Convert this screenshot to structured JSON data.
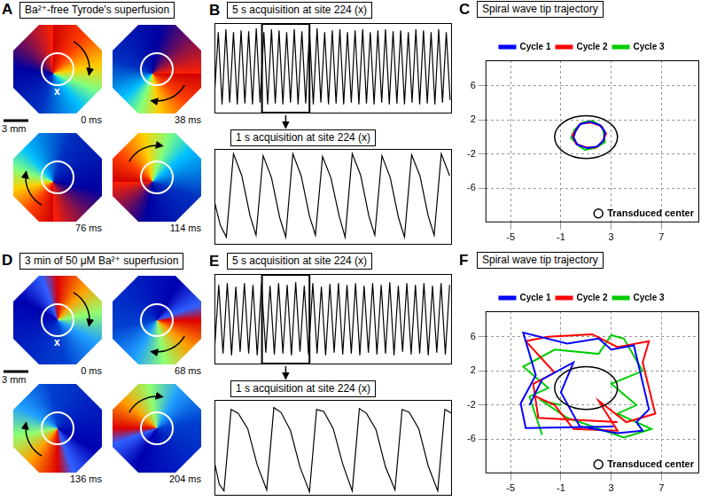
{
  "maps": [
    {
      "panel": "A",
      "title": "Ba²⁺-free Tyrode's superfusion",
      "scale_bar": "3 mm",
      "site_label": "x",
      "frames": [
        "0 ms",
        "38 ms",
        "76 ms",
        "114 ms"
      ]
    },
    {
      "panel": "D",
      "title": "3 min of 50 μM Ba²⁺ superfusion",
      "scale_bar": "3 mm",
      "site_label": "x",
      "frames": [
        "0 ms",
        "68 ms",
        "136 ms",
        "204 ms"
      ]
    }
  ],
  "chart_data": [
    {
      "panel": "B",
      "type": "line",
      "title": "5 s acquisition at site 224 (x)",
      "color": "#000000",
      "tick_labels": false,
      "grid": false,
      "xlim": [
        0,
        5
      ],
      "ylim": [
        0,
        1
      ],
      "window": [
        1.0,
        2.0
      ],
      "x": [
        0,
        0.08,
        0.16,
        0.24,
        0.32,
        0.4,
        0.48,
        0.56,
        0.64,
        0.72,
        0.8,
        0.88,
        0.96,
        1.04,
        1.12,
        1.2,
        1.28,
        1.36,
        1.44,
        1.52,
        1.6,
        1.68,
        1.76,
        1.84,
        1.92,
        2,
        2.08,
        2.16,
        2.24,
        2.32,
        2.4,
        2.48,
        2.56,
        2.64,
        2.72,
        2.8,
        2.88,
        2.96,
        3.04,
        3.12,
        3.2,
        3.28,
        3.36,
        3.44,
        3.52,
        3.6,
        3.68,
        3.76,
        3.84,
        3.92,
        4,
        4.08,
        4.16,
        4.24,
        4.32,
        4.4,
        4.48,
        4.56,
        4.64,
        4.72,
        4.8,
        4.88,
        4.96
      ],
      "values": [
        0.2,
        0.9,
        0.1,
        0.93,
        0.12,
        0.9,
        0.1,
        0.92,
        0.11,
        0.91,
        0.1,
        0.94,
        0.12,
        0.9,
        0.1,
        0.93,
        0.11,
        0.92,
        0.1,
        0.9,
        0.12,
        0.93,
        0.1,
        0.91,
        0.11,
        0.92,
        0.1,
        0.94,
        0.12,
        0.9,
        0.1,
        0.92,
        0.11,
        0.93,
        0.1,
        0.9,
        0.12,
        0.92,
        0.1,
        0.93,
        0.11,
        0.9,
        0.1,
        0.92,
        0.12,
        0.93,
        0.1,
        0.91,
        0.11,
        0.92,
        0.1,
        0.9,
        0.12,
        0.93,
        0.1,
        0.92,
        0.11,
        0.9,
        0.1,
        0.93,
        0.12,
        0.9,
        0.15
      ]
    },
    {
      "type": "line",
      "title": "1 s acquisition at site 224 (x)",
      "color": "#000000",
      "tick_labels": false,
      "grid": false,
      "xlim": [
        0,
        1
      ],
      "ylim": [
        0,
        1
      ],
      "x": [
        0,
        0.025,
        0.05,
        0.08,
        0.115,
        0.15,
        0.175,
        0.205,
        0.24,
        0.275,
        0.3,
        0.33,
        0.365,
        0.4,
        0.425,
        0.455,
        0.49,
        0.525,
        0.55,
        0.58,
        0.615,
        0.65,
        0.675,
        0.705,
        0.74,
        0.775,
        0.8,
        0.83,
        0.865,
        0.9,
        0.925,
        0.955,
        0.99
      ],
      "values": [
        0.45,
        0.2,
        0.08,
        0.95,
        0.72,
        0.3,
        0.1,
        0.93,
        0.7,
        0.28,
        0.08,
        0.95,
        0.72,
        0.3,
        0.1,
        0.92,
        0.7,
        0.3,
        0.08,
        0.95,
        0.73,
        0.3,
        0.1,
        0.93,
        0.7,
        0.28,
        0.08,
        0.94,
        0.72,
        0.3,
        0.1,
        0.95,
        0.72
      ]
    },
    {
      "panel": "C",
      "type": "line",
      "title": "Spiral wave tip trajectory",
      "grid": true,
      "legend": "top",
      "xlim": [
        -7,
        10
      ],
      "ylim": [
        -10,
        9
      ],
      "xticks": [
        -5,
        -1,
        3,
        7
      ],
      "yticks": [
        -6,
        -2,
        2,
        6
      ],
      "circle": {
        "name": "Transduced center",
        "x": 1,
        "y": 0,
        "radius": 2.5
      },
      "series": [
        {
          "name": "Cycle 1",
          "color": "#0000ff",
          "x": [
            0.2,
            0.5,
            1.3,
            2.1,
            2.5,
            2.4,
            1.9,
            1.1,
            0.3,
            0.0,
            0.2
          ],
          "values": [
            0.8,
            1.5,
            1.8,
            1.4,
            0.6,
            -0.4,
            -1.1,
            -1.3,
            -0.9,
            0.0,
            0.8
          ]
        },
        {
          "name": "Cycle 2",
          "color": "#ff0000",
          "x": [
            0.3,
            0.6,
            1.4,
            2.2,
            2.6,
            2.3,
            1.8,
            1.0,
            0.2,
            -0.1,
            0.3
          ],
          "values": [
            1.0,
            1.6,
            1.7,
            1.3,
            0.4,
            -0.5,
            -1.2,
            -1.2,
            -0.8,
            0.2,
            1.0
          ]
        },
        {
          "name": "Cycle 3",
          "color": "#00cc00",
          "x": [
            0.1,
            0.7,
            1.5,
            2.3,
            2.4,
            2.5,
            1.7,
            0.9,
            0.4,
            -0.2,
            0.1
          ],
          "values": [
            0.9,
            1.7,
            1.9,
            1.2,
            0.5,
            -0.6,
            -1.3,
            -1.5,
            -1.0,
            -0.1,
            0.9
          ]
        }
      ]
    },
    {
      "panel": "E",
      "type": "line",
      "title": "5 s acquisition at site 224 (x)",
      "color": "#000000",
      "tick_labels": false,
      "grid": false,
      "xlim": [
        0,
        5
      ],
      "ylim": [
        0,
        1
      ],
      "window": [
        1.0,
        2.0
      ],
      "x": [
        0,
        0.09,
        0.18,
        0.27,
        0.36,
        0.45,
        0.54,
        0.63,
        0.72,
        0.81,
        0.9,
        0.99,
        1.08,
        1.17,
        1.26,
        1.35,
        1.44,
        1.53,
        1.62,
        1.71,
        1.8,
        1.89,
        1.98,
        2.07,
        2.16,
        2.25,
        2.34,
        2.43,
        2.52,
        2.61,
        2.7,
        2.79,
        2.88,
        2.97,
        3.06,
        3.15,
        3.24,
        3.33,
        3.42,
        3.51,
        3.6,
        3.69,
        3.78,
        3.87,
        3.96,
        4.05,
        4.14,
        4.23,
        4.32,
        4.41,
        4.5,
        4.59,
        4.68,
        4.77,
        4.86,
        4.95
      ],
      "values": [
        0.15,
        0.88,
        0.12,
        0.9,
        0.1,
        0.86,
        0.14,
        0.9,
        0.12,
        0.88,
        0.1,
        0.9,
        0.13,
        0.87,
        0.11,
        0.9,
        0.12,
        0.88,
        0.1,
        0.91,
        0.14,
        0.87,
        0.11,
        0.9,
        0.12,
        0.86,
        0.1,
        0.89,
        0.13,
        0.9,
        0.11,
        0.88,
        0.12,
        0.9,
        0.1,
        0.87,
        0.13,
        0.9,
        0.11,
        0.88,
        0.12,
        0.91,
        0.1,
        0.87,
        0.14,
        0.9,
        0.11,
        0.88,
        0.12,
        0.9,
        0.1,
        0.87,
        0.13,
        0.9,
        0.11,
        0.88
      ]
    },
    {
      "type": "line",
      "title": "1 s acquisition at site 224 (x)",
      "color": "#000000",
      "tick_labels": false,
      "grid": false,
      "xlim": [
        0,
        1
      ],
      "ylim": [
        0,
        1
      ],
      "x": [
        0,
        0.02,
        0.04,
        0.07,
        0.1,
        0.14,
        0.18,
        0.22,
        0.25,
        0.28,
        0.32,
        0.36,
        0.4,
        0.43,
        0.46,
        0.5,
        0.54,
        0.58,
        0.61,
        0.64,
        0.68,
        0.72,
        0.76,
        0.79,
        0.82,
        0.86,
        0.9,
        0.94,
        0.97,
        1.0
      ],
      "values": [
        0.35,
        0.12,
        0.05,
        0.9,
        0.86,
        0.7,
        0.32,
        0.06,
        0.92,
        0.87,
        0.68,
        0.3,
        0.04,
        0.9,
        0.88,
        0.7,
        0.33,
        0.05,
        0.91,
        0.86,
        0.69,
        0.3,
        0.06,
        0.9,
        0.87,
        0.7,
        0.31,
        0.05,
        0.9,
        0.86
      ]
    },
    {
      "panel": "F",
      "type": "line",
      "title": "Spiral wave tip trajectory",
      "grid": true,
      "legend": "top",
      "xlim": [
        -7,
        10
      ],
      "ylim": [
        -10,
        9
      ],
      "xticks": [
        -5,
        -1,
        3,
        7
      ],
      "yticks": [
        -6,
        -2,
        2,
        6
      ],
      "circle": {
        "name": "Transduced center",
        "x": 1,
        "y": 0,
        "radius": 2.5
      },
      "series": [
        {
          "name": "Cycle 1",
          "color": "#0000ff",
          "x": [
            3.2,
            -3.8,
            -4.2,
            -3.0,
            -4.0,
            -0.5,
            2.0,
            3.0,
            4.8,
            5.2,
            6.0,
            5.0,
            5.5,
            3.5,
            0.5,
            -1.0,
            0.0,
            -2.5,
            -3.5
          ],
          "values": [
            -4.5,
            -4.7,
            -1.8,
            1.5,
            6.5,
            5.2,
            5.8,
            4.5,
            5.0,
            2.5,
            -2.5,
            -4.0,
            -5.0,
            -5.3,
            -4.5,
            -0.5,
            3.0,
            1.0,
            -2.0
          ]
        },
        {
          "name": "Cycle 2",
          "color": "#ff0000",
          "x": [
            3.5,
            -2.8,
            -3.2,
            -1.5,
            -3.8,
            -2.0,
            1.5,
            3.5,
            6.0,
            5.5,
            6.5,
            4.2,
            2.0,
            3.5,
            0.0,
            -1.5,
            -3.0
          ],
          "values": [
            -4.0,
            -3.5,
            0.5,
            1.8,
            5.5,
            6.0,
            6.3,
            4.8,
            5.5,
            3.0,
            -3.0,
            -4.0,
            -1.5,
            -5.0,
            -4.8,
            -2.0,
            -1.0
          ]
        },
        {
          "name": "Cycle 3",
          "color": "#00cc00",
          "x": [
            -2.5,
            -3.5,
            -2.0,
            -4.0,
            -1.5,
            2.0,
            3.0,
            4.0,
            5.5,
            3.0,
            5.0,
            3.5,
            6.2,
            4.0,
            1.5,
            -0.5,
            -2.5,
            -1.0
          ],
          "values": [
            -5.5,
            -1.0,
            0.0,
            2.5,
            4.5,
            4.0,
            6.2,
            5.8,
            2.0,
            0.5,
            -2.0,
            -3.0,
            -4.8,
            -5.8,
            -4.5,
            -3.5,
            -1.5,
            -2.0
          ]
        }
      ]
    }
  ]
}
